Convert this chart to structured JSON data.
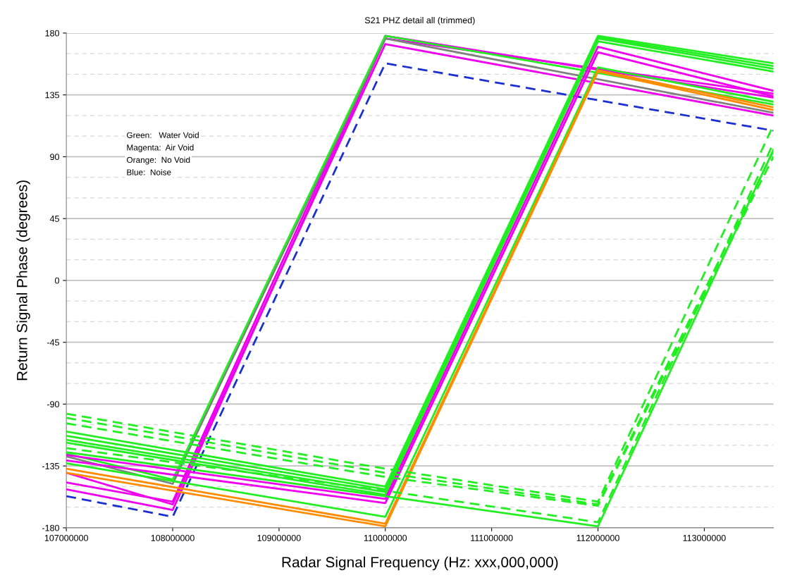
{
  "chart_data": {
    "type": "line",
    "title": "S21 PHZ detail all (trimmed)",
    "xlabel": "Radar Signal Frequency (Hz: xxx,000,000)",
    "ylabel": "Return Signal Phase (degrees)",
    "annotations": [
      "Green:   Water Void",
      "Magenta:  Air Void",
      "Orange:  No Void",
      "Blue:  Noise"
    ],
    "xlim": [
      107000000,
      113650000
    ],
    "xticks": [
      107000000,
      108000000,
      109000000,
      110000000,
      111000000,
      112000000,
      113000000
    ],
    "ylim": [
      -180,
      180
    ],
    "yticks": [
      -180,
      {
        "value": -165,
        "label": null
      },
      {
        "value": -150,
        "label": null
      },
      -135,
      {
        "value": -120,
        "label": null
      },
      {
        "value": -105,
        "label": null
      },
      -90,
      {
        "value": -75,
        "label": null
      },
      {
        "value": -60,
        "label": null
      },
      -45,
      {
        "value": -30,
        "label": null
      },
      {
        "value": -15,
        "label": null
      },
      0,
      {
        "value": 15,
        "label": null
      },
      {
        "value": 30,
        "label": null
      },
      45,
      {
        "value": 60,
        "label": null
      },
      {
        "value": 75,
        "label": null
      },
      90,
      {
        "value": 105,
        "label": null
      },
      {
        "value": 120,
        "label": null
      },
      135,
      {
        "value": 150,
        "label": null
      },
      {
        "value": 165,
        "label": null
      },
      180
    ],
    "grid": "y",
    "marker": "none",
    "series": [
      {
        "color": "#1c2fd0",
        "line_style": "dashed",
        "x": [
          107000000,
          108000000,
          110000000,
          113650000
        ],
        "values": [
          -157,
          -172,
          158,
          109
        ]
      },
      {
        "color": "#ee00ee",
        "line_style": "solid",
        "x": [
          107000000,
          108000000,
          110000000,
          113650000
        ],
        "values": [
          -147,
          -161,
          178,
          133
        ]
      },
      {
        "color": "#ee00ee",
        "line_style": "solid",
        "x": [
          107000000,
          108000000,
          110000000,
          113650000
        ],
        "values": [
          -152,
          -167,
          176,
          136
        ]
      },
      {
        "color": "#ee00ee",
        "line_style": "solid",
        "x": [
          107000000,
          108000000,
          110000000,
          113650000
        ],
        "values": [
          -140,
          -163,
          172,
          120
        ]
      },
      {
        "color": "#808080",
        "line_style": "solid",
        "x": [
          107000000,
          108000000,
          110000000,
          113650000
        ],
        "values": [
          -128,
          -148,
          176,
          122
        ]
      },
      {
        "color": "#22ee22",
        "line_style": "solid",
        "x": [
          107000000,
          108000000,
          110000000,
          112000000,
          113650000
        ],
        "values": [
          -126,
          -145,
          178,
          151,
          128
        ]
      },
      {
        "color": "#22ee22",
        "line_style": "solid",
        "x": [
          107000000,
          110000000,
          112000000,
          113650000
        ],
        "values": [
          -110,
          -150,
          178,
          158
        ]
      },
      {
        "color": "#22ee22",
        "line_style": "solid",
        "x": [
          107000000,
          110000000,
          112000000,
          113650000
        ],
        "values": [
          -113,
          -152,
          177,
          156
        ]
      },
      {
        "color": "#22ee22",
        "line_style": "solid",
        "x": [
          107000000,
          110000000,
          112000000,
          113650000
        ],
        "values": [
          -116,
          -154,
          176,
          154
        ]
      },
      {
        "color": "#22ee22",
        "line_style": "solid",
        "x": [
          107000000,
          110000000,
          112000000,
          113650000
        ],
        "values": [
          -118,
          -156,
          174,
          152
        ]
      },
      {
        "color": "#ee00ee",
        "line_style": "solid",
        "x": [
          107000000,
          110000000,
          112000000,
          113650000
        ],
        "values": [
          -127,
          -159,
          170,
          138
        ]
      },
      {
        "color": "#ee00ee",
        "line_style": "solid",
        "x": [
          107000000,
          110000000,
          112000000,
          113650000
        ],
        "values": [
          -131,
          -162,
          166,
          134
        ]
      },
      {
        "color": "#22ee22",
        "line_style": "solid",
        "x": [
          107000000,
          110000000,
          112000000,
          113650000
        ],
        "values": [
          -133,
          -172,
          155,
          130
        ]
      },
      {
        "color": "#ff8c00",
        "line_style": "solid",
        "x": [
          107000000,
          110000000,
          112000000,
          113650000
        ],
        "values": [
          -137,
          -177,
          153,
          126
        ]
      },
      {
        "color": "#ff8c00",
        "line_style": "solid",
        "x": [
          107000000,
          110000000,
          112000000,
          113650000
        ],
        "values": [
          -140,
          -179,
          152,
          124
        ]
      },
      {
        "color": "#22ee22",
        "line_style": "dashed",
        "x": [
          107000000,
          110000000,
          112000000,
          113650000
        ],
        "values": [
          -97,
          -137,
          -161,
          113
        ]
      },
      {
        "color": "#22ee22",
        "line_style": "dashed",
        "x": [
          107000000,
          110000000,
          112000000,
          113650000
        ],
        "values": [
          -100,
          -140,
          -163,
          94
        ]
      },
      {
        "color": "#22ee22",
        "line_style": "dashed",
        "x": [
          107000000,
          110000000,
          112000000,
          113650000
        ],
        "values": [
          -104,
          -143,
          -164,
          90
        ]
      },
      {
        "color": "#22ee22",
        "line_style": "dashed",
        "x": [
          107000000,
          110000000,
          112000000,
          113650000
        ],
        "values": [
          -122,
          -153,
          -176,
          100
        ]
      },
      {
        "color": "#22ee22",
        "line_style": "solid",
        "x": [
          107000000,
          110000000,
          112000000,
          113650000
        ],
        "values": [
          -125,
          -157,
          -179,
          95
        ]
      }
    ]
  }
}
